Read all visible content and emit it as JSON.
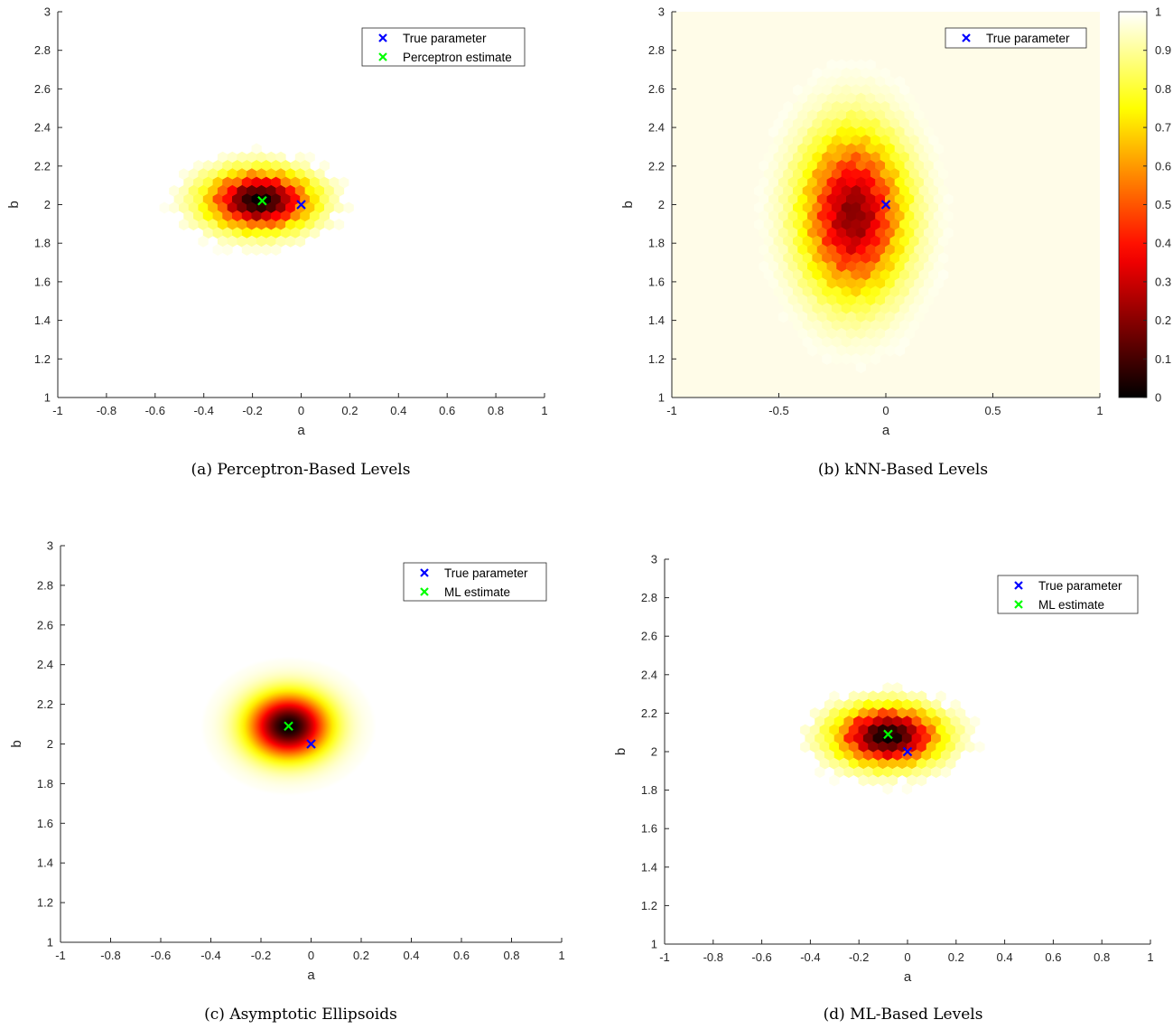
{
  "colors": {
    "true_parameter": "#0000ff",
    "estimate": "#00ff00",
    "colormap": "hot",
    "axis": "#262626",
    "kNN_background": "#fffce8"
  },
  "chart_data": [
    {
      "type": "heatmap",
      "caption": "(a) Perceptron-Based Levels",
      "xlabel": "a",
      "ylabel": "b",
      "xlim": [
        -1,
        1
      ],
      "ylim": [
        1,
        3
      ],
      "xticks": [
        "-1",
        "-0.8",
        "-0.6",
        "-0.4",
        "-0.2",
        "0",
        "0.2",
        "0.4",
        "0.6",
        "0.8",
        "1"
      ],
      "yticks": [
        "1",
        "1.2",
        "1.4",
        "1.6",
        "1.8",
        "2",
        "2.2",
        "2.4",
        "2.6",
        "2.8",
        "3"
      ],
      "grid": false,
      "render": "hex",
      "background": "white",
      "field": {
        "center": [
          -0.17,
          2.02
        ],
        "sigma": [
          0.14,
          0.1
        ],
        "extent": 2.6
      },
      "legend": {
        "position": "top-right",
        "entries": [
          {
            "label": "True parameter",
            "marker": "x",
            "color": "#0000ff"
          },
          {
            "label": "Perceptron estimate",
            "marker": "x",
            "color": "#00ff00"
          }
        ]
      },
      "points": [
        {
          "name": "True parameter",
          "x": 0,
          "y": 2,
          "color": "#0000ff"
        },
        {
          "name": "Perceptron estimate",
          "x": -0.16,
          "y": 2.02,
          "color": "#00ff00"
        }
      ]
    },
    {
      "type": "heatmap",
      "caption": "(b) kNN-Based Levels",
      "xlabel": "a",
      "ylabel": "b",
      "xlim": [
        -1,
        1
      ],
      "ylim": [
        1,
        3
      ],
      "xticks": [
        "-1",
        "-0.5",
        "0",
        "0.5",
        "1"
      ],
      "yticks": [
        "1",
        "1.2",
        "1.4",
        "1.6",
        "1.8",
        "2",
        "2.2",
        "2.4",
        "2.6",
        "2.8",
        "3"
      ],
      "grid": false,
      "render": "hex",
      "background": "cream",
      "field": {
        "center": [
          -0.15,
          1.95
        ],
        "sigma": [
          0.16,
          0.28
        ],
        "extent": 2.2,
        "floor": 0.2
      },
      "colorbar": {
        "range": [
          0,
          1
        ],
        "ticks": [
          "0",
          "0.1",
          "0.2",
          "0.3",
          "0.4",
          "0.5",
          "0.6",
          "0.7",
          "0.8",
          "0.9",
          "1"
        ]
      },
      "legend": {
        "position": "top-right",
        "entries": [
          {
            "label": "True parameter",
            "marker": "x",
            "color": "#0000ff"
          }
        ]
      },
      "points": [
        {
          "name": "True parameter",
          "x": 0,
          "y": 2,
          "color": "#0000ff"
        }
      ]
    },
    {
      "type": "heatmap",
      "caption": "(c) Asymptotic Ellipsoids",
      "xlabel": "a",
      "ylabel": "b",
      "xlim": [
        -1,
        1
      ],
      "ylim": [
        1,
        3
      ],
      "xticks": [
        "-1",
        "-0.8",
        "-0.6",
        "-0.4",
        "-0.2",
        "0",
        "0.2",
        "0.4",
        "0.6",
        "0.8",
        "1"
      ],
      "yticks": [
        "1",
        "1.2",
        "1.4",
        "1.6",
        "1.8",
        "2",
        "2.2",
        "2.4",
        "2.6",
        "2.8",
        "3"
      ],
      "grid": false,
      "render": "smooth",
      "background": "white",
      "field": {
        "center": [
          -0.09,
          2.09
        ],
        "sigma": [
          0.11,
          0.11
        ],
        "extent": 3.2
      },
      "legend": {
        "position": "top-right",
        "entries": [
          {
            "label": "True parameter",
            "marker": "x",
            "color": "#0000ff"
          },
          {
            "label": "ML estimate",
            "marker": "x",
            "color": "#00ff00"
          }
        ]
      },
      "points": [
        {
          "name": "True parameter",
          "x": 0,
          "y": 2,
          "color": "#0000ff"
        },
        {
          "name": "ML estimate",
          "x": -0.09,
          "y": 2.09,
          "color": "#00ff00"
        }
      ]
    },
    {
      "type": "heatmap",
      "caption": "(d) ML-Based Levels",
      "xlabel": "a",
      "ylabel": "b",
      "xlim": [
        -1,
        1
      ],
      "ylim": [
        1,
        3
      ],
      "xticks": [
        "-1",
        "-0.8",
        "-0.6",
        "-0.4",
        "-0.2",
        "0",
        "0.2",
        "0.4",
        "0.6",
        "0.8",
        "1"
      ],
      "yticks": [
        "1",
        "1.2",
        "1.4",
        "1.6",
        "1.8",
        "2",
        "2.2",
        "2.4",
        "2.6",
        "2.8",
        "3"
      ],
      "grid": false,
      "render": "hex",
      "background": "white",
      "field": {
        "center": [
          -0.08,
          2.08
        ],
        "sigma": [
          0.14,
          0.1
        ],
        "extent": 2.6
      },
      "legend": {
        "position": "top-right",
        "entries": [
          {
            "label": "True parameter",
            "marker": "x",
            "color": "#0000ff"
          },
          {
            "label": "ML estimate",
            "marker": "x",
            "color": "#00ff00"
          }
        ]
      },
      "points": [
        {
          "name": "True parameter",
          "x": 0,
          "y": 2,
          "color": "#0000ff"
        },
        {
          "name": "ML estimate",
          "x": -0.08,
          "y": 2.09,
          "color": "#00ff00"
        }
      ]
    }
  ]
}
